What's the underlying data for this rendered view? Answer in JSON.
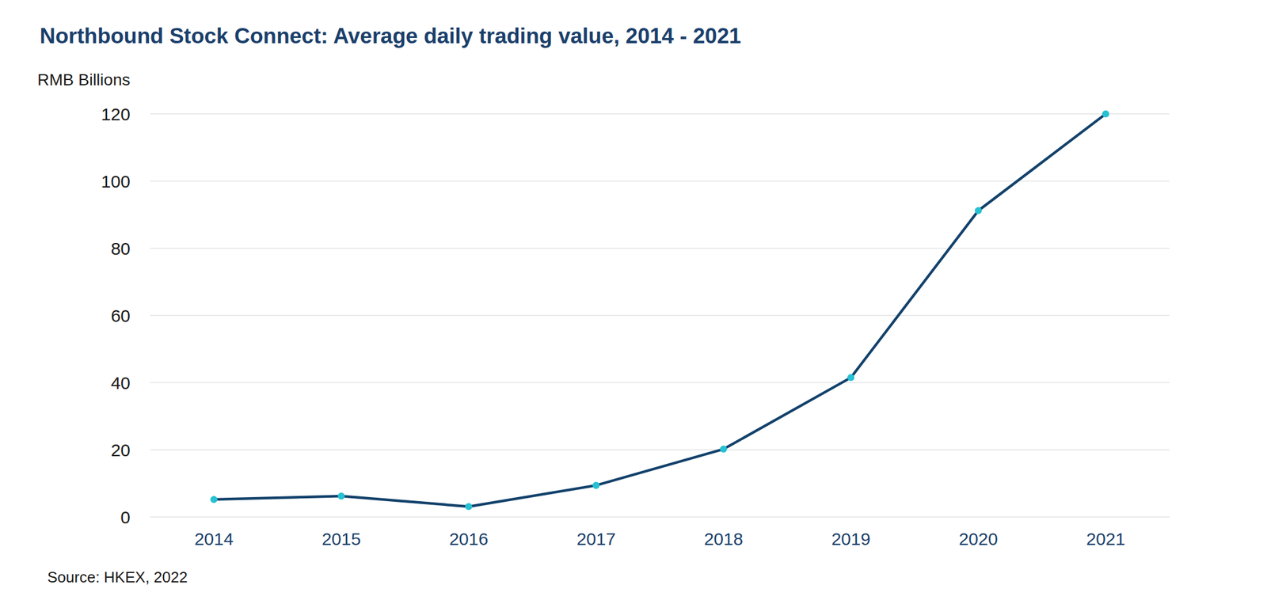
{
  "chart_data": {
    "type": "line",
    "title": "Northbound Stock Connect: Average daily trading value, 2014 - 2021",
    "ylabel": "RMB Billions",
    "source": "Source: HKEX, 2022",
    "categories": [
      "2014",
      "2015",
      "2016",
      "2017",
      "2018",
      "2019",
      "2020",
      "2021"
    ],
    "series": [
      {
        "name": "Average daily trading value",
        "color": "#12416b",
        "values": [
          5.2,
          6.2,
          3.1,
          9.4,
          20.2,
          41.5,
          91.2,
          120
        ],
        "marker": "circle",
        "line_style": "solid"
      }
    ],
    "ylim": [
      0,
      120
    ],
    "yticks": [
      0,
      20,
      40,
      60,
      80,
      100,
      120
    ],
    "grid": true
  }
}
